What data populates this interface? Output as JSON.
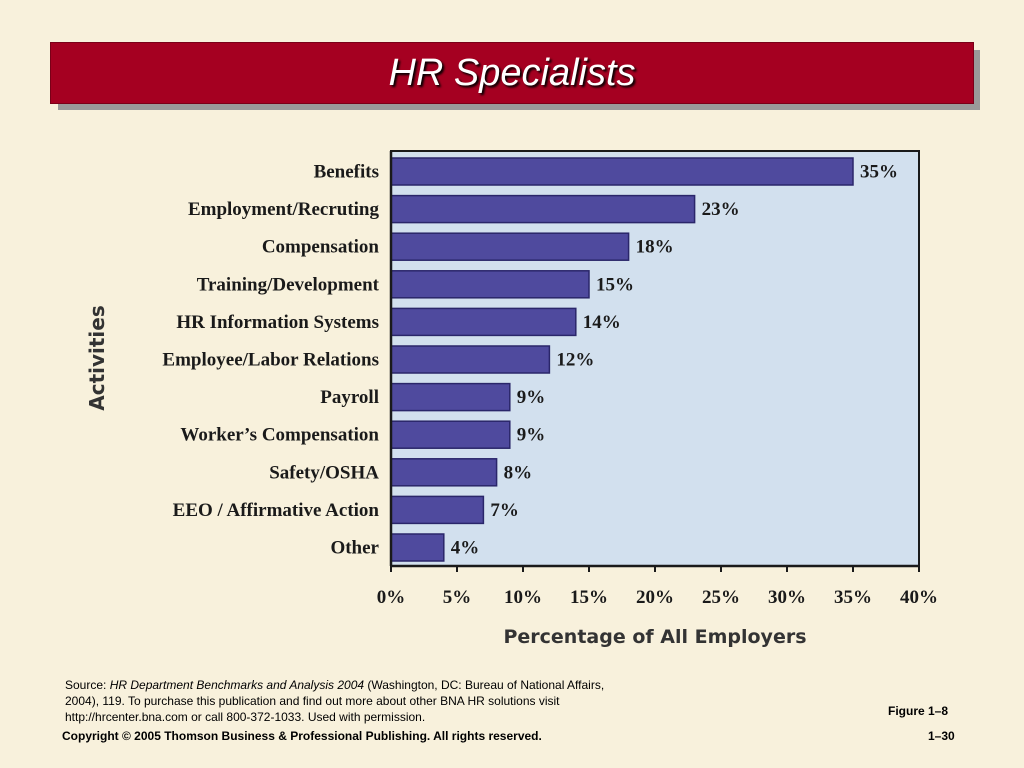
{
  "slide": {
    "title": "HR Specialists",
    "source_prefix": "Source: ",
    "source_title": "HR Department Benchmarks and Analysis 2004",
    "source_rest": " (Washington, DC: Bureau of National Affairs, 2004), 119. To purchase this publication and find out more about other BNA HR solutions visit http://hrcenter.bna.com or call 800-372-1033. Used with permission.",
    "figure_label": "Figure 1–8",
    "copyright": "Copyright © 2005 Thomson Business & Professional Publishing. All rights reserved.",
    "page_number": "1–30"
  },
  "colors": {
    "title_bar": "#a50021",
    "plot_background": "#d2e0ee",
    "bar_fill": "#4f4a9e",
    "bar_edge": "#2a266a",
    "page_background": "#f8f1dc"
  },
  "chart_data": {
    "type": "bar",
    "orientation": "horizontal",
    "categories": [
      "Benefits",
      "Employment/Recruting",
      "Compensation",
      "Training/Development",
      "HR Information Systems",
      "Employee/Labor Relations",
      "Payroll",
      "Worker’s Compensation",
      "Safety/OSHA",
      "EEO / Affirmative Action",
      "Other"
    ],
    "values": [
      35,
      23,
      18,
      15,
      14,
      12,
      9,
      9,
      8,
      7,
      4
    ],
    "value_labels": [
      "35%",
      "23%",
      "18%",
      "15%",
      "14%",
      "12%",
      "9%",
      "9%",
      "8%",
      "7%",
      "4%"
    ],
    "xlabel": "Percentage of All Employers",
    "ylabel": "Activities",
    "xlim": [
      0,
      40
    ],
    "xticks": [
      0,
      5,
      10,
      15,
      20,
      25,
      30,
      35,
      40
    ],
    "xtick_labels": [
      "0%",
      "5%",
      "10%",
      "15%",
      "20%",
      "25%",
      "30%",
      "35%",
      "40%"
    ],
    "grid": false
  }
}
